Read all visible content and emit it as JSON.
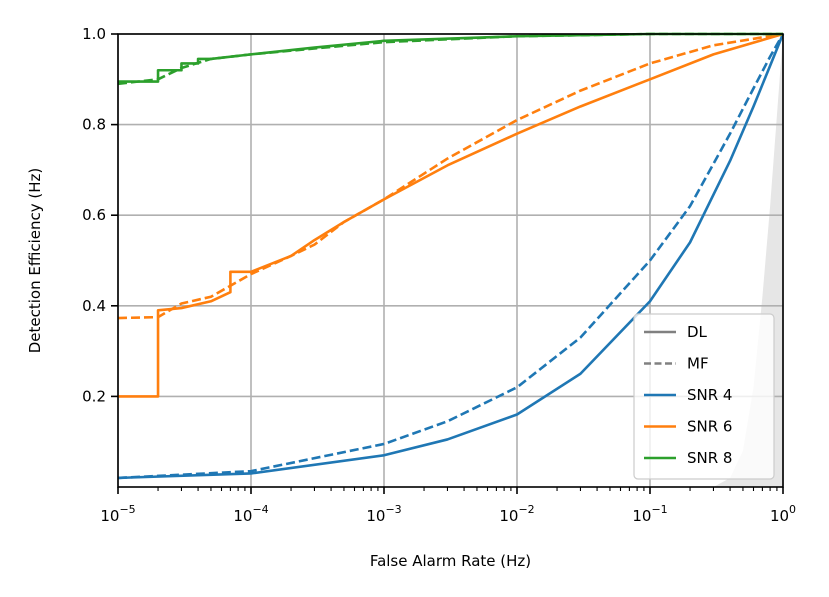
{
  "chart_data": {
    "type": "line",
    "title": "",
    "xlabel": "False Alarm Rate (Hz)",
    "ylabel": "Detection Efficiency (Hz)",
    "xscale": "log",
    "xlim": [
      1e-05,
      1
    ],
    "ylim": [
      0,
      1
    ],
    "grid": true,
    "legend_position": "lower-right",
    "x_ticks": [
      {
        "value": 1e-05,
        "base": "10",
        "exp": "−5"
      },
      {
        "value": 0.0001,
        "base": "10",
        "exp": "−4"
      },
      {
        "value": 0.001,
        "base": "10",
        "exp": "−3"
      },
      {
        "value": 0.01,
        "base": "10",
        "exp": "−2"
      },
      {
        "value": 0.1,
        "base": "10",
        "exp": "−1"
      },
      {
        "value": 1,
        "base": "10",
        "exp": "0"
      }
    ],
    "y_ticks": [
      {
        "value": 0.2,
        "label": "0.2"
      },
      {
        "value": 0.4,
        "label": "0.4"
      },
      {
        "value": 0.6,
        "label": "0.6"
      },
      {
        "value": 0.8,
        "label": "0.8"
      },
      {
        "value": 1.0,
        "label": "1.0"
      }
    ],
    "legend": [
      {
        "label": "DL",
        "color": "#808080",
        "dash": "solid"
      },
      {
        "label": "MF",
        "color": "#808080",
        "dash": "dashed"
      },
      {
        "label": "SNR 4",
        "color": "#1f77b4",
        "dash": "solid"
      },
      {
        "label": "SNR 6",
        "color": "#ff7f0e",
        "dash": "solid"
      },
      {
        "label": "SNR 8",
        "color": "#2ca02c",
        "dash": "solid"
      }
    ],
    "shaded_region": {
      "color": "#e6e6e6",
      "points": [
        [
          0.3,
          0.0
        ],
        [
          0.4,
          0.02
        ],
        [
          0.5,
          0.08
        ],
        [
          0.6,
          0.22
        ],
        [
          0.7,
          0.42
        ],
        [
          0.8,
          0.62
        ],
        [
          0.9,
          0.82
        ],
        [
          1.0,
          1.0
        ]
      ]
    },
    "series": [
      {
        "group": "SNR 4",
        "method": "DL",
        "color": "#1f77b4",
        "dash": "solid",
        "step": false,
        "points": [
          [
            1e-05,
            0.02
          ],
          [
            0.0001,
            0.03
          ],
          [
            0.001,
            0.07
          ],
          [
            0.003,
            0.105
          ],
          [
            0.01,
            0.16
          ],
          [
            0.03,
            0.25
          ],
          [
            0.1,
            0.41
          ],
          [
            0.2,
            0.54
          ],
          [
            0.4,
            0.72
          ],
          [
            0.6,
            0.84
          ],
          [
            0.8,
            0.93
          ],
          [
            1.0,
            1.0
          ]
        ]
      },
      {
        "group": "SNR 4",
        "method": "MF",
        "color": "#1f77b4",
        "dash": "dashed",
        "step": false,
        "points": [
          [
            1e-05,
            0.02
          ],
          [
            0.0001,
            0.035
          ],
          [
            0.001,
            0.095
          ],
          [
            0.003,
            0.145
          ],
          [
            0.01,
            0.22
          ],
          [
            0.03,
            0.33
          ],
          [
            0.1,
            0.5
          ],
          [
            0.2,
            0.62
          ],
          [
            0.4,
            0.78
          ],
          [
            0.6,
            0.88
          ],
          [
            0.8,
            0.95
          ],
          [
            1.0,
            1.0
          ]
        ]
      },
      {
        "group": "SNR 6",
        "method": "DL",
        "color": "#ff7f0e",
        "dash": "solid",
        "step": true,
        "points": [
          [
            1e-05,
            0.2
          ],
          [
            2e-05,
            0.2
          ],
          [
            2e-05,
            0.39
          ],
          [
            3e-05,
            0.395
          ],
          [
            5e-05,
            0.41
          ],
          [
            7e-05,
            0.43
          ],
          [
            7e-05,
            0.475
          ],
          [
            0.0001,
            0.475
          ],
          [
            0.0002,
            0.51
          ],
          [
            0.0003,
            0.545
          ],
          [
            0.0005,
            0.585
          ],
          [
            0.001,
            0.635
          ],
          [
            0.003,
            0.71
          ],
          [
            0.01,
            0.78
          ],
          [
            0.03,
            0.84
          ],
          [
            0.1,
            0.9
          ],
          [
            0.3,
            0.955
          ],
          [
            1.0,
            1.0
          ]
        ]
      },
      {
        "group": "SNR 6",
        "method": "MF",
        "color": "#ff7f0e",
        "dash": "dashed",
        "step": false,
        "points": [
          [
            1e-05,
            0.373
          ],
          [
            2e-05,
            0.375
          ],
          [
            3e-05,
            0.405
          ],
          [
            5e-05,
            0.42
          ],
          [
            0.0001,
            0.47
          ],
          [
            0.0002,
            0.51
          ],
          [
            0.0003,
            0.535
          ],
          [
            0.0005,
            0.585
          ],
          [
            0.001,
            0.635
          ],
          [
            0.003,
            0.725
          ],
          [
            0.01,
            0.81
          ],
          [
            0.03,
            0.875
          ],
          [
            0.1,
            0.935
          ],
          [
            0.3,
            0.975
          ],
          [
            1.0,
            1.0
          ]
        ]
      },
      {
        "group": "SNR 8",
        "method": "DL",
        "color": "#2ca02c",
        "dash": "solid",
        "step": true,
        "points": [
          [
            1e-05,
            0.895
          ],
          [
            2e-05,
            0.895
          ],
          [
            2e-05,
            0.92
          ],
          [
            3e-05,
            0.92
          ],
          [
            3e-05,
            0.935
          ],
          [
            4e-05,
            0.935
          ],
          [
            4e-05,
            0.945
          ],
          [
            5e-05,
            0.945
          ],
          [
            0.0001,
            0.955
          ],
          [
            0.0003,
            0.97
          ],
          [
            0.001,
            0.985
          ],
          [
            0.01,
            0.995
          ],
          [
            0.1,
            1.0
          ],
          [
            1.0,
            1.0
          ]
        ]
      },
      {
        "group": "SNR 8",
        "method": "MF",
        "color": "#2ca02c",
        "dash": "dashed",
        "step": false,
        "points": [
          [
            1e-05,
            0.89
          ],
          [
            2e-05,
            0.9
          ],
          [
            3e-05,
            0.925
          ],
          [
            5e-05,
            0.945
          ],
          [
            0.0001,
            0.955
          ],
          [
            0.0003,
            0.968
          ],
          [
            0.001,
            0.982
          ],
          [
            0.01,
            0.995
          ],
          [
            0.1,
            1.0
          ],
          [
            1.0,
            1.0
          ]
        ]
      }
    ]
  }
}
